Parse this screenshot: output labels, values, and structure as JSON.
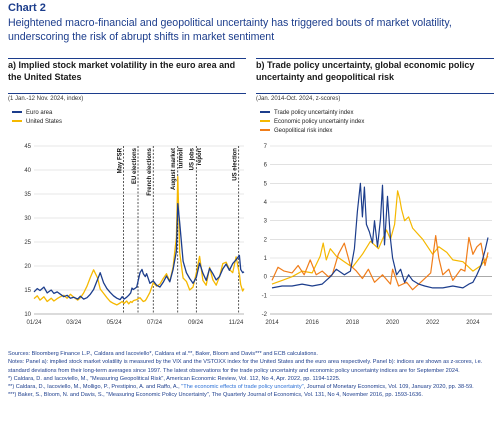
{
  "chart_label": "Chart 2",
  "headline": "Heightened macro-financial and geopolitical uncertainty has triggered bouts of market volatility, underscoring the risk of abrupt shifts in market sentiment",
  "colors": {
    "euro_area": "#1c3d8c",
    "united_states": "#f5b800",
    "trade": "#1c3d8c",
    "econ": "#f5b800",
    "geo": "#f07d1a"
  },
  "notes": {
    "sources": "Sources: Bloomberg Finance L.P., Caldara and Iacoviello*, Caldara et al.**, Baker, Bloom and Davis*** and ECB calculations.",
    "notes": "Notes: Panel a): implied stock market volatility is measured by the VIX and the VSTOXX index for the United States and the euro area respectively. Panel b): indices are shown as z-scores, i.e. standard deviations from their long-term averages since 1997. The latest observations for the trade policy uncertainty and economic policy uncertainty indices are for September 2024.",
    "ref1": "*) Caldara, D. and Iacoviello, M., \"Measuring Geopolitical Risk\", American Economic Review, Vol. 112, No 4, Apr. 2022, pp. 1194-1225.",
    "ref2a": "**) Caldara, D., Iacoviello, M., Molligo, P., Prestipino, A. and Raffo, A., ",
    "ref2b": "\"The economic effects of trade policy uncertainty\"",
    "ref2c": ", Journal of Monetary Economics, Vol. 109, January 2020, pp. 38-59.",
    "ref3": "***) Baker, S., Bloom, N. and Davis, S., \"Measuring Economic Policy Uncertainty\", The Quarterly Journal of Economics, Vol. 131, No 4, November 2016, pp. 1593-1636."
  },
  "chart_data": [
    {
      "type": "line",
      "title": "a) Implied stock market volatility in the euro area and the United States",
      "subtitle": "(1 Jan.-12 Nov. 2024, index)",
      "ylim": [
        10,
        45
      ],
      "yticks": [
        "10",
        "15",
        "20",
        "25",
        "30",
        "35",
        "40",
        "45"
      ],
      "xticks": [
        "01/24",
        "03/24",
        "05/24",
        "07/24",
        "09/24",
        "11/24"
      ],
      "legend": [
        "Euro area",
        "United States"
      ],
      "grid": true,
      "annotations": [
        "May FSR",
        "EU elections",
        "French elections",
        "August market turmoil",
        "US jobs report",
        "US election"
      ],
      "series": [
        {
          "name": "Euro area",
          "x": [
            0,
            5,
            9,
            15,
            20,
            26,
            30,
            35,
            40,
            45,
            50,
            55,
            60,
            66,
            70,
            75,
            80,
            85,
            90,
            96,
            100,
            105,
            110,
            115,
            120,
            125,
            130,
            133,
            136,
            140,
            143,
            146,
            148,
            150,
            155,
            160,
            163,
            165,
            168,
            170,
            175,
            180,
            185,
            190,
            195,
            200,
            205,
            210,
            215,
            217,
            220,
            225,
            230,
            235,
            240,
            245,
            250,
            255,
            260,
            265,
            270,
            275,
            280,
            285,
            290,
            295,
            300,
            305,
            310,
            312,
            315,
            317
          ],
          "values": [
            14.6,
            15.3,
            14.9,
            15.6,
            14.4,
            15.0,
            14.3,
            14.6,
            14.1,
            13.6,
            13.9,
            13.3,
            13.5,
            13.1,
            13.7,
            13.1,
            13.4,
            14.1,
            15.1,
            17.2,
            18.6,
            16.5,
            15.3,
            14.5,
            13.8,
            13.3,
            13.0,
            13.6,
            13.1,
            13.5,
            13.9,
            14.4,
            15.4,
            15.1,
            15.6,
            18.6,
            19.3,
            18.4,
            17.8,
            18.4,
            16.4,
            16.9,
            16.0,
            15.6,
            16.6,
            17.9,
            16.7,
            19.3,
            23.1,
            33.0,
            29.0,
            21.0,
            18.6,
            17.4,
            16.4,
            17.6,
            20.6,
            18.5,
            17.0,
            19.5,
            18.4,
            17.1,
            17.8,
            19.4,
            20.4,
            19.1,
            20.5,
            21.3,
            22.2,
            19.3,
            18.6,
            18.8
          ]
        },
        {
          "name": "United States",
          "x": [
            0,
            5,
            9,
            15,
            20,
            26,
            30,
            35,
            40,
            45,
            50,
            55,
            60,
            66,
            70,
            75,
            80,
            85,
            90,
            96,
            100,
            105,
            110,
            115,
            120,
            125,
            130,
            133,
            136,
            140,
            143,
            146,
            148,
            150,
            155,
            160,
            163,
            165,
            168,
            170,
            175,
            180,
            185,
            190,
            195,
            200,
            205,
            210,
            215,
            217,
            220,
            225,
            230,
            235,
            240,
            245,
            250,
            255,
            260,
            265,
            270,
            275,
            280,
            285,
            290,
            295,
            300,
            305,
            310,
            312,
            315,
            317
          ],
          "values": [
            13.2,
            13.8,
            12.9,
            13.6,
            12.6,
            13.3,
            12.7,
            13.2,
            13.6,
            13.9,
            13.3,
            14.1,
            13.5,
            12.9,
            13.4,
            14.4,
            15.8,
            17.6,
            19.2,
            17.5,
            15.2,
            14.3,
            13.4,
            12.6,
            12.2,
            11.9,
            12.3,
            12.6,
            12.2,
            12.7,
            12.1,
            12.6,
            12.4,
            12.8,
            13.0,
            13.4,
            12.9,
            12.6,
            12.8,
            13.2,
            14.5,
            16.5,
            15.8,
            16.2,
            17.4,
            18.4,
            16.8,
            19.8,
            26.0,
            38.6,
            22.8,
            17.5,
            16.8,
            15.0,
            15.6,
            18.5,
            22.0,
            17.0,
            16.0,
            19.7,
            17.1,
            16.0,
            17.8,
            20.5,
            20.8,
            19.3,
            18.6,
            21.9,
            18.3,
            16.1,
            14.8,
            15.3
          ]
        }
      ]
    },
    {
      "type": "line",
      "title": "b) Trade policy uncertainty, global economic policy uncertainty and geopolitical risk",
      "subtitle": "(Jan. 2014-Oct. 2024, z-scores)",
      "ylim": [
        -2,
        7
      ],
      "yticks": [
        "-2",
        "-1",
        "0",
        "1",
        "2",
        "3",
        "4",
        "5",
        "6",
        "7"
      ],
      "xticks": [
        "2014",
        "2016",
        "2018",
        "2020",
        "2022",
        "2024"
      ],
      "legend": [
        "Trade policy uncertainty index",
        "Economic policy uncertainty index",
        "Geopolitical risk index"
      ],
      "grid": true,
      "series": [
        {
          "name": "Trade policy uncertainty index",
          "x": [
            2014.0,
            2014.5,
            2015.0,
            2015.5,
            2016.0,
            2016.5,
            2016.9,
            2017.2,
            2017.6,
            2017.9,
            2018.1,
            2018.25,
            2018.4,
            2018.5,
            2018.6,
            2018.7,
            2018.85,
            2019.0,
            2019.1,
            2019.25,
            2019.4,
            2019.5,
            2019.6,
            2019.75,
            2019.9,
            2020.0,
            2020.2,
            2020.4,
            2020.6,
            2020.8,
            2021.0,
            2021.3,
            2021.6,
            2022.0,
            2022.5,
            2023.0,
            2023.5,
            2023.8,
            2024.0,
            2024.2,
            2024.4,
            2024.6,
            2024.75
          ],
          "values": [
            -0.6,
            -0.5,
            -0.5,
            -0.4,
            -0.5,
            -0.4,
            0.0,
            0.4,
            0.1,
            0.3,
            1.5,
            3.5,
            5.0,
            3.2,
            4.8,
            2.8,
            2.4,
            1.8,
            3.0,
            1.6,
            3.1,
            4.9,
            1.7,
            4.3,
            2.0,
            1.0,
            0.1,
            0.4,
            -0.3,
            0.1,
            -0.2,
            -0.4,
            -0.5,
            -0.6,
            -0.6,
            -0.5,
            -0.6,
            -0.4,
            -0.3,
            0.1,
            0.6,
            1.4,
            2.1
          ]
        },
        {
          "name": "Economic policy uncertainty index",
          "x": [
            2014.0,
            2014.5,
            2015.0,
            2015.5,
            2016.0,
            2016.4,
            2016.55,
            2016.7,
            2016.9,
            2017.2,
            2017.6,
            2018.0,
            2018.5,
            2018.9,
            2019.3,
            2019.7,
            2019.9,
            2020.1,
            2020.25,
            2020.35,
            2020.45,
            2020.6,
            2020.8,
            2021.0,
            2021.5,
            2022.0,
            2022.3,
            2022.7,
            2023.0,
            2023.5,
            2024.0,
            2024.4,
            2024.75
          ],
          "values": [
            -0.4,
            -0.2,
            0.0,
            0.3,
            0.2,
            1.1,
            1.8,
            0.9,
            1.5,
            1.1,
            0.8,
            0.5,
            1.2,
            1.9,
            1.5,
            2.5,
            2.0,
            2.8,
            4.6,
            4.2,
            3.6,
            3.0,
            3.2,
            2.6,
            2.0,
            1.2,
            1.6,
            1.3,
            0.9,
            0.8,
            0.3,
            0.6,
            1.1
          ]
        },
        {
          "name": "Geopolitical risk index",
          "x": [
            2014.0,
            2014.3,
            2014.6,
            2015.0,
            2015.3,
            2015.6,
            2015.9,
            2016.2,
            2016.5,
            2016.8,
            2017.0,
            2017.3,
            2017.6,
            2017.9,
            2018.2,
            2018.5,
            2018.8,
            2019.1,
            2019.5,
            2019.9,
            2020.0,
            2020.3,
            2020.7,
            2021.0,
            2021.5,
            2021.9,
            2022.0,
            2022.15,
            2022.3,
            2022.5,
            2022.8,
            2023.0,
            2023.4,
            2023.6,
            2023.8,
            2024.0,
            2024.2,
            2024.4,
            2024.6,
            2024.75
          ],
          "values": [
            -0.2,
            0.5,
            0.3,
            0.2,
            0.6,
            0.1,
            0.9,
            0.1,
            0.3,
            0.0,
            0.1,
            1.2,
            1.8,
            0.6,
            0.3,
            -0.1,
            0.4,
            -0.3,
            0.1,
            -0.4,
            0.4,
            -0.5,
            -0.3,
            -0.7,
            -0.2,
            0.2,
            1.0,
            2.2,
            1.0,
            0.1,
            0.4,
            -0.2,
            0.4,
            0.3,
            2.1,
            1.2,
            1.6,
            1.8,
            0.6,
            1.3
          ]
        }
      ]
    }
  ]
}
